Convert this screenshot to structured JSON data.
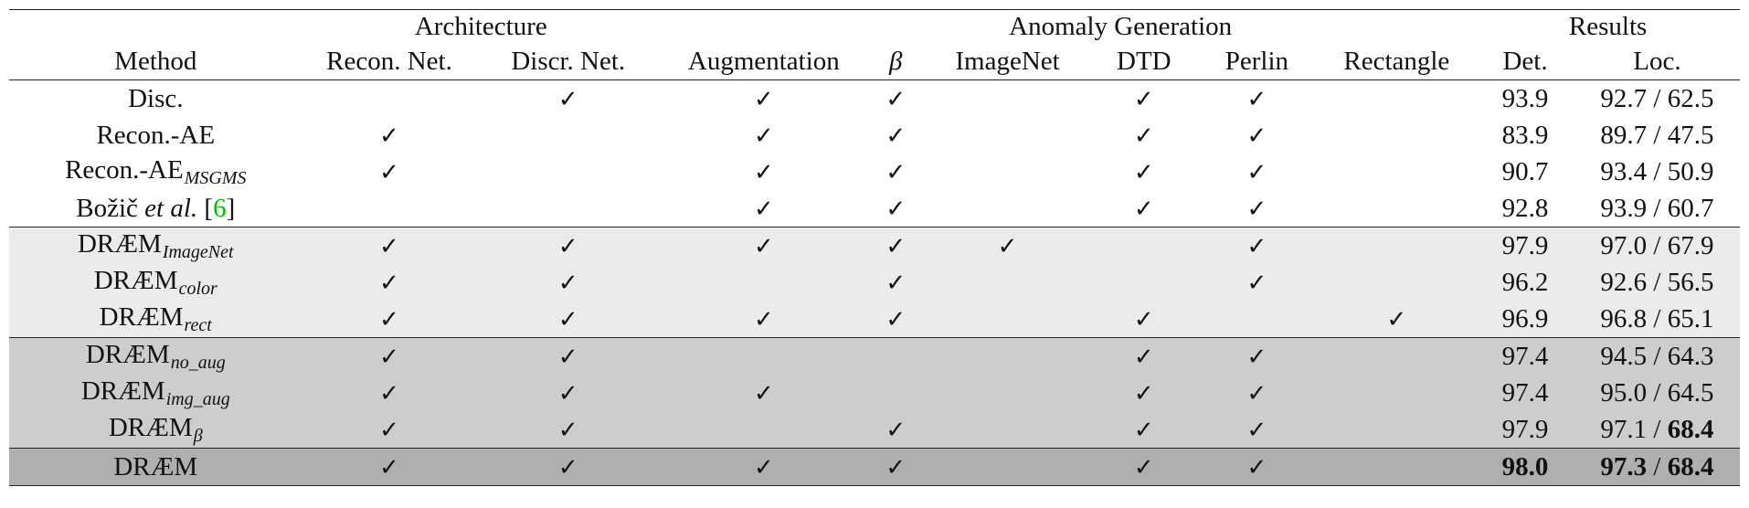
{
  "check_glyph": "✓",
  "header": {
    "groups": {
      "architecture": "Architecture",
      "anomaly_generation": "Anomaly Generation",
      "results": "Results"
    },
    "columns": {
      "method": "Method",
      "recon_net": "Recon. Net.",
      "discr_net": "Discr. Net.",
      "augmentation": "Augmentation",
      "beta": "β",
      "imagenet": "ImageNet",
      "dtd": "DTD",
      "perlin": "Perlin",
      "rectangle": "Rectangle",
      "det": "Det.",
      "loc": "Loc."
    }
  },
  "rows": [
    {
      "name": "Disc.",
      "sub": "",
      "recon": false,
      "discr": true,
      "aug": true,
      "beta": true,
      "imagenet": false,
      "dtd": true,
      "perlin": true,
      "rect": false,
      "det": "93.9",
      "loc_a": "92.7",
      "loc_b": "62.5",
      "group": 0
    },
    {
      "name": "Recon.-AE",
      "sub": "",
      "recon": true,
      "discr": false,
      "aug": true,
      "beta": true,
      "imagenet": false,
      "dtd": true,
      "perlin": true,
      "rect": false,
      "det": "83.9",
      "loc_a": "89.7",
      "loc_b": "47.5",
      "group": 0
    },
    {
      "name": "Recon.-AE",
      "sub": "MSGMS",
      "recon": true,
      "discr": false,
      "aug": true,
      "beta": true,
      "imagenet": false,
      "dtd": true,
      "perlin": true,
      "rect": false,
      "det": "90.7",
      "loc_a": "93.4",
      "loc_b": "50.9",
      "group": 0
    },
    {
      "name": "Božič",
      "cite_text": "et al.",
      "cite_ref": "6",
      "sub": "",
      "recon": false,
      "discr": false,
      "aug": true,
      "beta": true,
      "imagenet": false,
      "dtd": true,
      "perlin": true,
      "rect": false,
      "det": "92.8",
      "loc_a": "93.9",
      "loc_b": "60.7",
      "group": 0
    },
    {
      "name": "DRÆM",
      "sub": "ImageNet",
      "recon": true,
      "discr": true,
      "aug": true,
      "beta": true,
      "imagenet": true,
      "dtd": false,
      "perlin": true,
      "rect": false,
      "det": "97.9",
      "loc_a": "97.0",
      "loc_b": "67.9",
      "group": 1
    },
    {
      "name": "DRÆM",
      "sub": "color",
      "recon": true,
      "discr": true,
      "aug": false,
      "beta": true,
      "imagenet": false,
      "dtd": false,
      "perlin": true,
      "rect": false,
      "det": "96.2",
      "loc_a": "92.6",
      "loc_b": "56.5",
      "group": 1
    },
    {
      "name": "DRÆM",
      "sub": "rect",
      "recon": true,
      "discr": true,
      "aug": true,
      "beta": true,
      "imagenet": false,
      "dtd": true,
      "perlin": false,
      "rect": true,
      "det": "96.9",
      "loc_a": "96.8",
      "loc_b": "65.1",
      "group": 1
    },
    {
      "name": "DRÆM",
      "sub": "no_aug",
      "recon": true,
      "discr": true,
      "aug": false,
      "beta": false,
      "imagenet": false,
      "dtd": true,
      "perlin": true,
      "rect": false,
      "det": "97.4",
      "loc_a": "94.5",
      "loc_b": "64.3",
      "group": 2
    },
    {
      "name": "DRÆM",
      "sub": "img_aug",
      "recon": true,
      "discr": true,
      "aug": true,
      "beta": false,
      "imagenet": false,
      "dtd": true,
      "perlin": true,
      "rect": false,
      "det": "97.4",
      "loc_a": "95.0",
      "loc_b": "64.5",
      "group": 2
    },
    {
      "name": "DRÆM",
      "sub": "β",
      "recon": true,
      "discr": true,
      "aug": false,
      "beta": true,
      "imagenet": false,
      "dtd": true,
      "perlin": true,
      "rect": false,
      "det": "97.9",
      "loc_a": "97.1",
      "loc_b": "68.4",
      "bold_loc_b": true,
      "group": 2
    },
    {
      "name": "DRÆM",
      "sub": "",
      "recon": true,
      "discr": true,
      "aug": true,
      "beta": true,
      "imagenet": false,
      "dtd": true,
      "perlin": true,
      "rect": false,
      "det": "98.0",
      "loc_a": "97.3",
      "loc_b": "68.4",
      "bold_det": true,
      "bold_loc_a": true,
      "bold_loc_b": true,
      "group": 3
    }
  ]
}
